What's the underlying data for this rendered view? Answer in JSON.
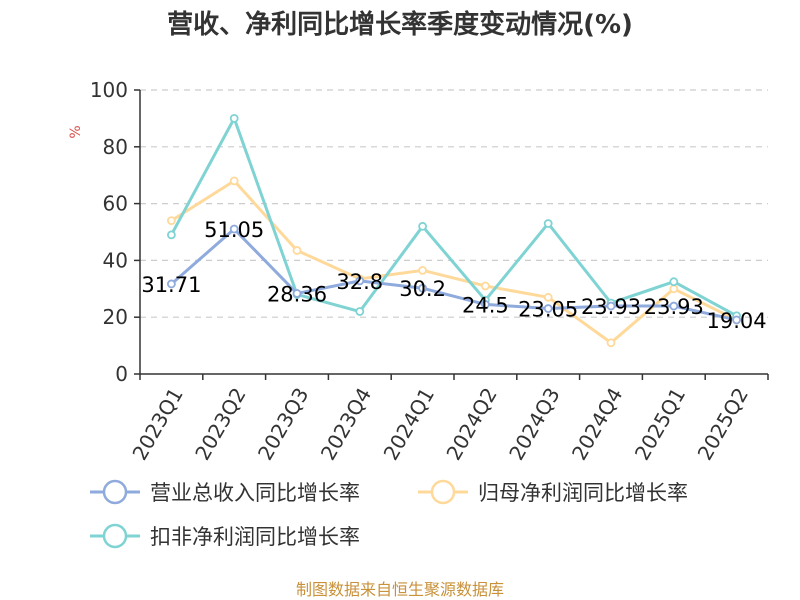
{
  "title": "营收、净利同比增长率季度变动情况(%)",
  "source": "制图数据来自恒生聚源数据库",
  "colors": {
    "revenue": "#8FAADC",
    "net_profit": "#FFD99A",
    "deducted_profit": "#7FD3D3",
    "unit": "#d9534f",
    "source": "#c8913a",
    "grid": "#cccccc",
    "axis": "#333333"
  },
  "chart_data": {
    "type": "line",
    "title": "营收、净利同比增长率季度变动情况(%)",
    "ylabel": "%",
    "xlabel": "",
    "ylim": [
      0,
      100
    ],
    "yticks": [
      0,
      20,
      40,
      60,
      80,
      100
    ],
    "grid": true,
    "legend_position": "bottom",
    "categories": [
      "2023Q1",
      "2023Q2",
      "2023Q3",
      "2023Q4",
      "2024Q1",
      "2024Q2",
      "2024Q3",
      "2024Q4",
      "2025Q1",
      "2025Q2"
    ],
    "series": [
      {
        "name": "营业总收入同比增长率",
        "color_key": "revenue",
        "values": [
          31.71,
          51.05,
          28.36,
          32.8,
          30.2,
          24.5,
          23.05,
          23.93,
          23.93,
          19.04
        ],
        "labels": [
          "31.71",
          "51.05",
          "28.36",
          "32.8",
          "30.2",
          "24.5",
          "23.05",
          "23.93",
          "23.93",
          "19.04"
        ]
      },
      {
        "name": "归母净利润同比增长率",
        "color_key": "net_profit",
        "values": [
          54,
          68,
          43.5,
          33.5,
          36.5,
          31,
          27,
          11,
          30,
          19
        ]
      },
      {
        "name": "扣非净利润同比增长率",
        "color_key": "deducted_profit",
        "values": [
          49,
          90,
          28,
          22,
          52,
          26,
          53,
          25,
          32.5,
          20.5
        ]
      }
    ]
  }
}
